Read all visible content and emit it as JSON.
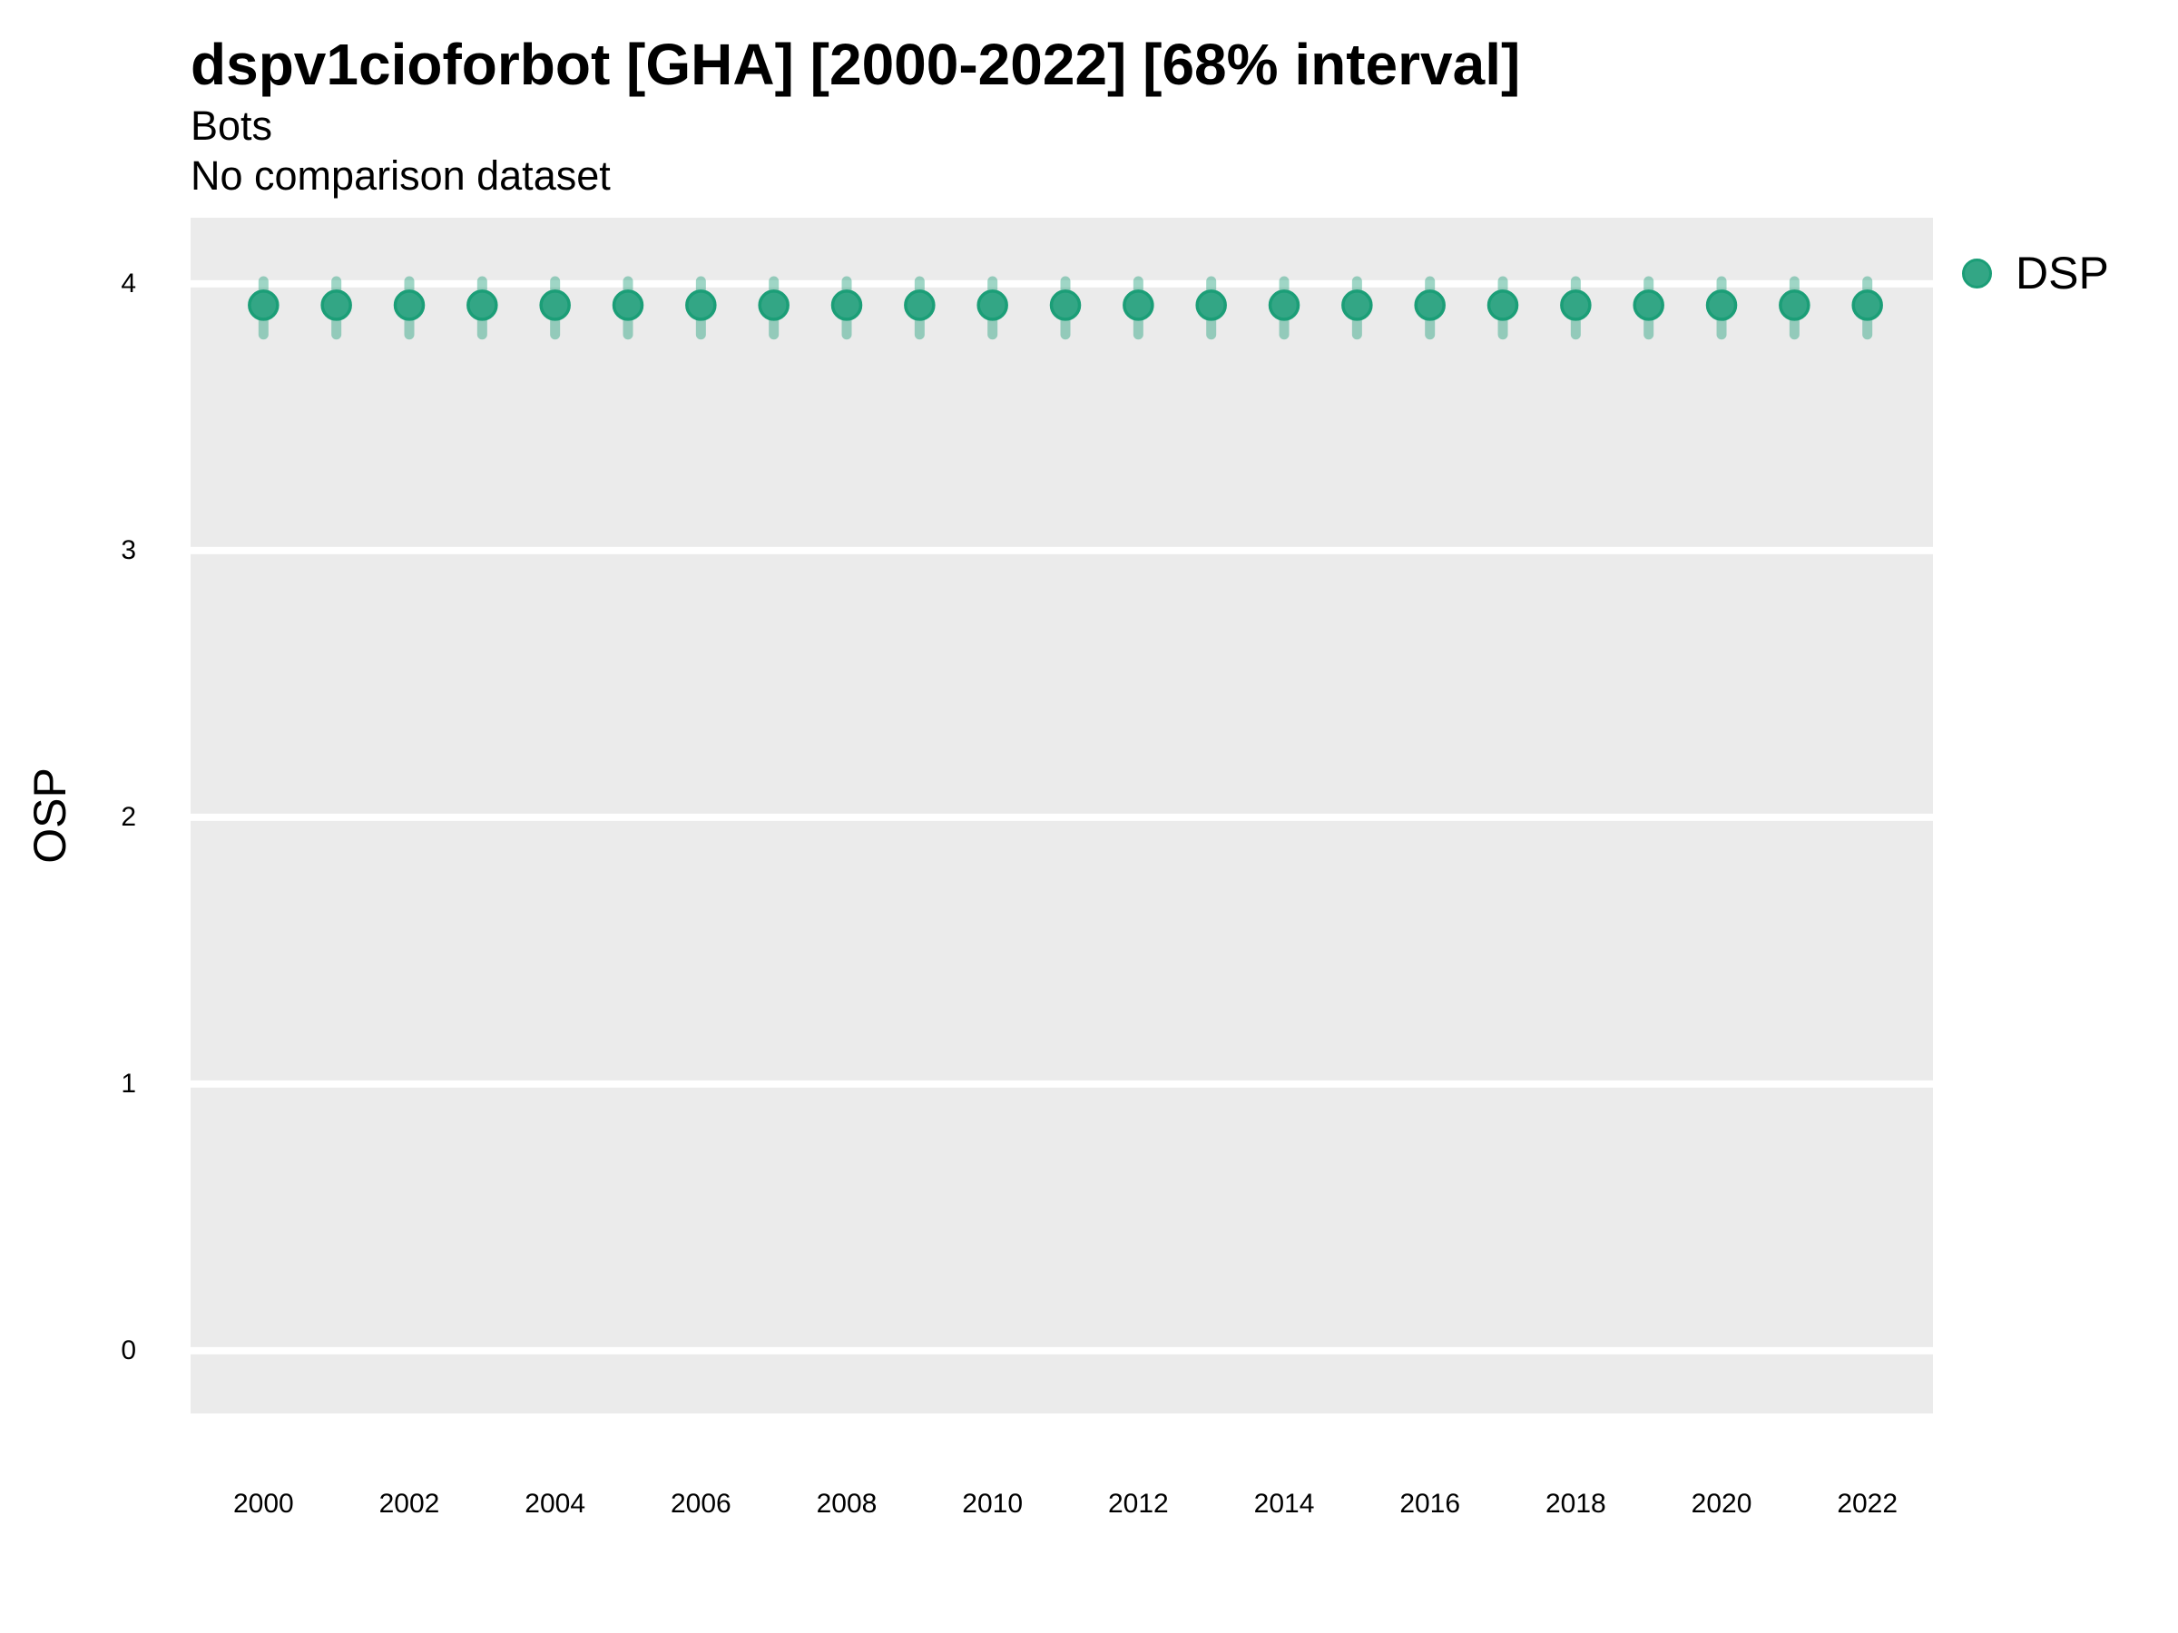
{
  "header": {
    "title": "dspv1cioforbot [GHA] [2000-2022] [68% interval]",
    "subtitle1": "Bots",
    "subtitle2": "No comparison dataset"
  },
  "legend": {
    "label": "DSP"
  },
  "colors": {
    "point_stroke": "#1b9e77",
    "point_fill": "#33a685",
    "errorbar": "#1b9e77",
    "errorbar_opacity": 0.42,
    "panel_bg": "#ebebeb",
    "gridline": "#ffffff",
    "text": "#000000"
  },
  "chart_data": {
    "type": "scatter",
    "title": "dspv1cioforbot [GHA] [2000-2022] [68% interval]",
    "subtitle": [
      "Bots",
      "No comparison dataset"
    ],
    "xlabel": "",
    "ylabel": "OSP",
    "interval_level": "68%",
    "legend_position": "right-top",
    "grid": "horizontal-major",
    "x": [
      2000,
      2001,
      2002,
      2003,
      2004,
      2005,
      2006,
      2007,
      2008,
      2009,
      2010,
      2011,
      2012,
      2013,
      2014,
      2015,
      2016,
      2017,
      2018,
      2019,
      2020,
      2021,
      2022
    ],
    "series": [
      {
        "name": "DSP",
        "values": [
          3.92,
          3.92,
          3.92,
          3.92,
          3.92,
          3.92,
          3.92,
          3.92,
          3.92,
          3.92,
          3.92,
          3.92,
          3.92,
          3.92,
          3.92,
          3.92,
          3.92,
          3.92,
          3.92,
          3.92,
          3.92,
          3.92,
          3.92
        ],
        "lower": [
          3.81,
          3.81,
          3.81,
          3.81,
          3.81,
          3.81,
          3.81,
          3.81,
          3.81,
          3.81,
          3.81,
          3.81,
          3.81,
          3.81,
          3.81,
          3.81,
          3.81,
          3.81,
          3.81,
          3.81,
          3.81,
          3.81,
          3.81
        ],
        "upper": [
          4.01,
          4.01,
          4.01,
          4.01,
          4.01,
          4.01,
          4.01,
          4.01,
          4.01,
          4.01,
          4.01,
          4.01,
          4.01,
          4.01,
          4.01,
          4.01,
          4.01,
          4.01,
          4.01,
          4.01,
          4.01,
          4.01,
          4.01
        ]
      }
    ],
    "xticks": [
      2000,
      2002,
      2004,
      2006,
      2008,
      2010,
      2012,
      2014,
      2016,
      2018,
      2020,
      2022
    ],
    "yticks": [
      0,
      1,
      2,
      3,
      4
    ],
    "xlim": [
      1999.0,
      2022.9
    ],
    "ylim": [
      -0.235,
      4.248
    ]
  }
}
